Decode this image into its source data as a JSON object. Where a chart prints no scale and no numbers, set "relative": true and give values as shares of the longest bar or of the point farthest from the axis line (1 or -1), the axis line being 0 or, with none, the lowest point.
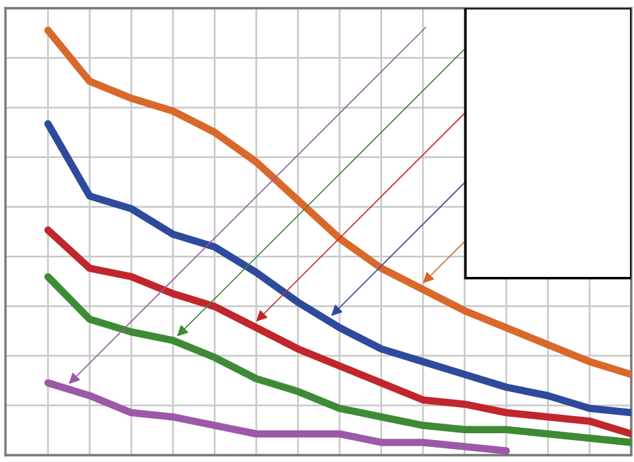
{
  "chart_data": {
    "type": "line",
    "relative": true,
    "grid": true,
    "categories": [
      null,
      null,
      null,
      null,
      null,
      null,
      null,
      null,
      null,
      null,
      null,
      null,
      null,
      null,
      null
    ],
    "series": [
      {
        "color": "#d9682b",
        "values": [
          1.0,
          0.88,
          0.84,
          0.81,
          0.76,
          0.69,
          0.6,
          0.51,
          0.44,
          0.39,
          0.34,
          0.3,
          0.26,
          0.22,
          0.19
        ]
      },
      {
        "color": "#2e4a9c",
        "values": [
          0.78,
          0.61,
          0.58,
          0.52,
          0.49,
          0.43,
          0.36,
          0.3,
          0.25,
          0.22,
          0.19,
          0.16,
          0.14,
          0.11,
          0.1
        ]
      },
      {
        "color": "#c0262c",
        "values": [
          0.53,
          0.44,
          0.42,
          0.38,
          0.35,
          0.3,
          0.25,
          0.21,
          0.17,
          0.13,
          0.12,
          0.1,
          0.09,
          0.08,
          0.05
        ]
      },
      {
        "color": "#3e8a35",
        "values": [
          0.42,
          0.32,
          0.29,
          0.27,
          0.23,
          0.18,
          0.15,
          0.11,
          0.09,
          0.07,
          0.06,
          0.06,
          0.05,
          0.04,
          0.03
        ]
      },
      {
        "color": "#9b59a8",
        "values": [
          0.17,
          0.14,
          0.1,
          0.09,
          0.07,
          0.05,
          0.05,
          0.05,
          0.03,
          0.03,
          0.02,
          0.01,
          null,
          null,
          null
        ]
      }
    ]
  }
}
